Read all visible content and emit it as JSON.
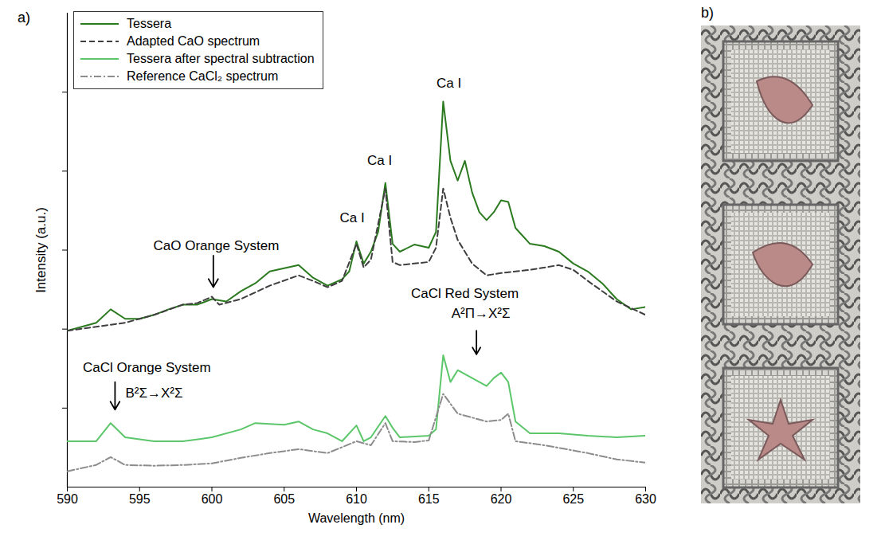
{
  "chart_data": {
    "type": "line",
    "panel_label": "a)",
    "x_label": "Wavelength (nm)",
    "y_label": "Intensity (a.u.)",
    "xlim": [
      590,
      630
    ],
    "ylim": [
      0,
      6
    ],
    "xticks": [
      590,
      595,
      600,
      605,
      610,
      615,
      620,
      625,
      630
    ],
    "yticks": [
      1,
      2,
      3,
      4,
      5
    ],
    "tick_labels": "x",
    "legend": "upper left",
    "series": [
      {
        "name": "Tessera",
        "color": "#2b7a1f",
        "line_style": "solid",
        "x": [
          590,
          591,
          592,
          593,
          594,
          595,
          596,
          597,
          598,
          599,
          600,
          601,
          602,
          603,
          604,
          605,
          606,
          607,
          608,
          609,
          609.5,
          610,
          610.5,
          611,
          611.5,
          612,
          612.5,
          613,
          614,
          615,
          615.5,
          616,
          616.5,
          617,
          617.5,
          618,
          618.5,
          619,
          619.5,
          620,
          620.5,
          621,
          622,
          623,
          624,
          625,
          626,
          627,
          628,
          629,
          630
        ],
        "values": [
          1.98,
          2.03,
          2.08,
          2.25,
          2.13,
          2.13,
          2.18,
          2.25,
          2.31,
          2.31,
          2.38,
          2.35,
          2.48,
          2.58,
          2.73,
          2.77,
          2.81,
          2.65,
          2.55,
          2.63,
          2.73,
          3.11,
          2.83,
          2.98,
          3.23,
          3.85,
          3.08,
          2.98,
          3.07,
          3.03,
          3.23,
          4.88,
          4.13,
          3.88,
          4.13,
          3.73,
          3.48,
          3.38,
          3.48,
          3.63,
          3.61,
          3.28,
          3.08,
          3.05,
          2.98,
          2.83,
          2.73,
          2.58,
          2.38,
          2.25,
          2.28
        ]
      },
      {
        "name": "Adapted CaO spectrum",
        "color": "#3f3f3f",
        "line_style": "dashed",
        "x": [
          590,
          592,
          594,
          596,
          598,
          599,
          600,
          600.5,
          602,
          604,
          606,
          607,
          608,
          609,
          610,
          610.5,
          611,
          612,
          612.5,
          613,
          615,
          615.5,
          616,
          616.5,
          617,
          618,
          619,
          620,
          622,
          624,
          625,
          626,
          628,
          630
        ],
        "values": [
          1.98,
          2.03,
          2.08,
          2.18,
          2.31,
          2.33,
          2.41,
          2.31,
          2.38,
          2.55,
          2.68,
          2.61,
          2.53,
          2.61,
          3.08,
          2.78,
          2.88,
          3.78,
          2.85,
          2.81,
          2.85,
          3.03,
          3.78,
          3.41,
          3.13,
          2.83,
          2.68,
          2.71,
          2.75,
          2.81,
          2.75,
          2.61,
          2.35,
          2.18
        ]
      },
      {
        "name": "Tessera after spectral subtraction",
        "color": "#5cc66a",
        "line_style": "solid",
        "x": [
          590,
          592,
          593,
          594,
          596,
          598,
          600,
          602,
          603,
          605,
          606,
          607,
          608,
          609,
          610,
          610.5,
          611,
          612,
          612.5,
          613,
          615,
          615.5,
          616,
          616.5,
          617,
          617.5,
          618,
          618.5,
          619,
          619.5,
          620,
          620.5,
          621,
          622,
          624,
          626,
          628,
          630
        ],
        "values": [
          0.58,
          0.58,
          0.81,
          0.63,
          0.58,
          0.58,
          0.63,
          0.73,
          0.81,
          0.79,
          0.83,
          0.73,
          0.68,
          0.58,
          0.78,
          0.58,
          0.63,
          0.9,
          0.75,
          0.63,
          0.65,
          0.73,
          1.67,
          1.33,
          1.48,
          1.43,
          1.38,
          1.33,
          1.28,
          1.38,
          1.45,
          1.33,
          0.83,
          0.68,
          0.68,
          0.65,
          0.63,
          0.65
        ]
      },
      {
        "name": "Reference CaCl₂ spectrum",
        "color": "#8c8c8c",
        "line_style": "dashdot",
        "x": [
          590,
          592,
          593,
          594,
          596,
          598,
          600,
          602,
          604,
          606,
          608,
          610,
          611,
          612,
          612.5,
          614,
          615,
          616,
          617,
          618,
          619,
          620,
          620.5,
          621,
          623,
          626,
          628,
          630
        ],
        "values": [
          0.2,
          0.28,
          0.38,
          0.28,
          0.27,
          0.28,
          0.3,
          0.37,
          0.43,
          0.48,
          0.43,
          0.58,
          0.53,
          0.81,
          0.58,
          0.57,
          0.59,
          1.18,
          0.93,
          0.88,
          0.83,
          0.85,
          0.93,
          0.58,
          0.53,
          0.43,
          0.35,
          0.31
        ]
      }
    ],
    "annotations": [
      {
        "text": "Ca I",
        "x": 609.7,
        "y": 3.41
      },
      {
        "text": "Ca I",
        "x": 611.6,
        "y": 4.13
      },
      {
        "text": "Ca I",
        "x": 616.4,
        "y": 5.11
      },
      {
        "text": "CaO Orange System",
        "x": 600.3,
        "y": 3.06
      },
      {
        "text": "CaCl Red System",
        "x": 617.5,
        "y": 2.45
      },
      {
        "text": "A²Π→X²Σ",
        "x": 618.6,
        "y": 2.2
      },
      {
        "text": "CaCl Orange System",
        "x": 595.5,
        "y": 1.51
      },
      {
        "text": "B²Σ→X²Σ",
        "x": 596,
        "y": 1.19
      }
    ],
    "arrows": [
      {
        "x": 600.1,
        "y1": 2.93,
        "y2": 2.53
      },
      {
        "x": 618.3,
        "y1": 1.98,
        "y2": 1.68
      },
      {
        "x": 593.3,
        "y1": 1.33,
        "y2": 0.98
      }
    ]
  },
  "image_panel": {
    "panel_label": "b)"
  }
}
